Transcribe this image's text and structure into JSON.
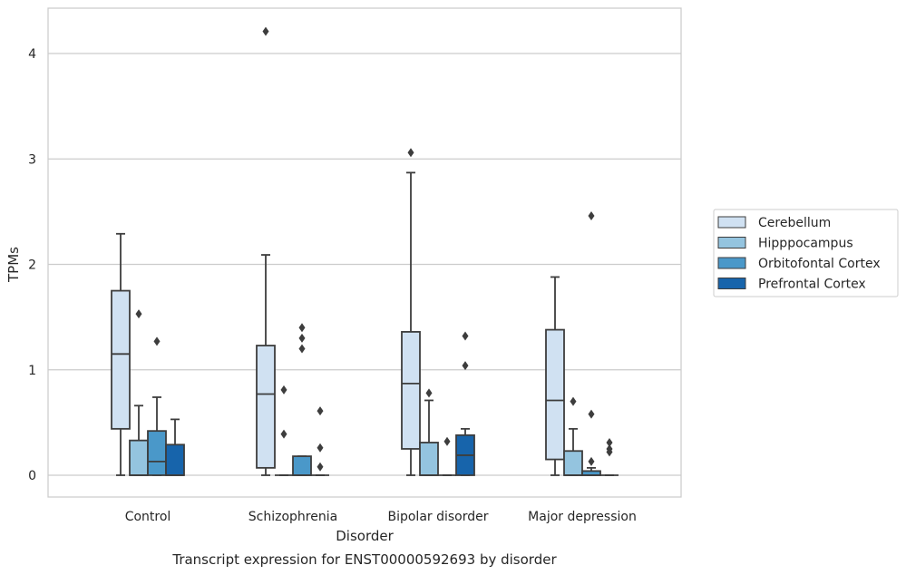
{
  "caption": "Transcript expression for ENST00000592693 by disorder",
  "chart_data": {
    "type": "box",
    "xlabel": "Disorder",
    "ylabel": "TPMs",
    "ylim": [
      -0.2,
      4.4
    ],
    "yticks": [
      0,
      1,
      2,
      3,
      4
    ],
    "grid": true,
    "legend_position": "right",
    "categories": [
      "Control",
      "Schizophrenia",
      "Bipolar disorder",
      "Major depression"
    ],
    "series": [
      {
        "name": "Cerebellum",
        "color": "#d0e1f2",
        "boxes": [
          {
            "whislo": 0.0,
            "q1": 0.44,
            "med": 1.15,
            "q3": 1.75,
            "whishi": 2.29,
            "fliers": []
          },
          {
            "whislo": 0.0,
            "q1": 0.07,
            "med": 0.77,
            "q3": 1.23,
            "whishi": 2.09,
            "fliers": [
              4.21
            ]
          },
          {
            "whislo": 0.0,
            "q1": 0.25,
            "med": 0.87,
            "q3": 1.36,
            "whishi": 2.87,
            "fliers": [
              3.06
            ]
          },
          {
            "whislo": 0.0,
            "q1": 0.15,
            "med": 0.71,
            "q3": 1.38,
            "whishi": 1.88,
            "fliers": []
          }
        ]
      },
      {
        "name": "Hipppocampus",
        "color": "#94c4df",
        "boxes": [
          {
            "whislo": 0.0,
            "q1": 0.0,
            "med": 0.0,
            "q3": 0.33,
            "whishi": 0.66,
            "fliers": [
              1.53
            ]
          },
          {
            "whislo": 0.0,
            "q1": 0.0,
            "med": 0.0,
            "q3": 0.0,
            "whishi": 0.0,
            "fliers": [
              0.81,
              0.39
            ]
          },
          {
            "whislo": 0.0,
            "q1": 0.0,
            "med": 0.0,
            "q3": 0.31,
            "whishi": 0.71,
            "fliers": [
              0.78
            ]
          },
          {
            "whislo": 0.0,
            "q1": 0.0,
            "med": 0.0,
            "q3": 0.23,
            "whishi": 0.44,
            "fliers": [
              0.7
            ]
          }
        ]
      },
      {
        "name": "Orbitofontal Cortex",
        "color": "#4a98c9",
        "boxes": [
          {
            "whislo": 0.0,
            "q1": 0.0,
            "med": 0.13,
            "q3": 0.42,
            "whishi": 0.74,
            "fliers": [
              1.27
            ]
          },
          {
            "whislo": 0.0,
            "q1": 0.0,
            "med": 0.0,
            "q3": 0.18,
            "whishi": 0.18,
            "fliers": [
              1.4,
              1.3,
              1.2
            ]
          },
          {
            "whislo": 0.0,
            "q1": 0.0,
            "med": 0.0,
            "q3": 0.0,
            "whishi": 0.0,
            "fliers": [
              0.32
            ]
          },
          {
            "whislo": 0.0,
            "q1": 0.0,
            "med": 0.0,
            "q3": 0.04,
            "whishi": 0.07,
            "fliers": [
              2.46,
              0.58,
              0.13
            ]
          }
        ]
      },
      {
        "name": "Prefrontal Cortex",
        "color": "#1764ab",
        "boxes": [
          {
            "whislo": 0.0,
            "q1": 0.0,
            "med": 0.0,
            "q3": 0.29,
            "whishi": 0.53,
            "fliers": []
          },
          {
            "whislo": 0.0,
            "q1": 0.0,
            "med": 0.0,
            "q3": 0.0,
            "whishi": 0.0,
            "fliers": [
              0.61,
              0.26,
              0.08
            ]
          },
          {
            "whislo": 0.0,
            "q1": 0.0,
            "med": 0.19,
            "q3": 0.38,
            "whishi": 0.44,
            "fliers": [
              1.32,
              1.04
            ]
          },
          {
            "whislo": 0.0,
            "q1": 0.0,
            "med": 0.0,
            "q3": 0.0,
            "whishi": 0.0,
            "fliers": [
              0.31,
              0.25,
              0.22
            ]
          }
        ]
      }
    ]
  }
}
